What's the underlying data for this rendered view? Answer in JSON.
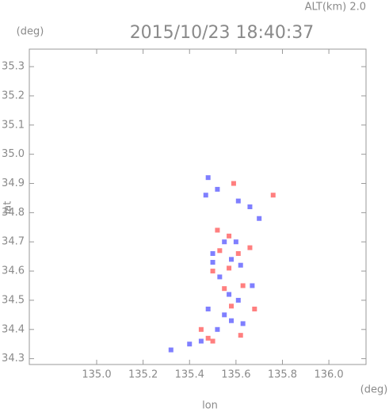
{
  "chart_data": {
    "type": "scatter",
    "title": "2015/10/23 18:40:37",
    "subtitle": "ALT(km) 2.0",
    "ylabel_unit": "(deg)",
    "xlabel_unit": "(deg)",
    "ylabel": "lat",
    "xlabel": "lon",
    "xlim": [
      134.71,
      136.16
    ],
    "ylim": [
      34.28,
      35.36
    ],
    "xticks": [
      {
        "value": 135,
        "label": "135.0"
      },
      135.2,
      135.4,
      135.6,
      135.8,
      {
        "value": 136,
        "label": "136.0"
      }
    ],
    "yticks": [
      34.3,
      34.4,
      34.5,
      34.6,
      34.7,
      34.8,
      34.9,
      {
        "value": 35,
        "label": "35.0"
      },
      35.1,
      35.2,
      35.3
    ],
    "series": [
      {
        "color": "#7f7fff",
        "x": [
          135.48,
          135.47,
          135.52,
          135.61,
          135.66,
          135.55,
          135.5,
          135.58,
          135.62,
          135.53,
          135.57,
          135.61,
          135.48,
          135.55,
          135.63,
          135.52,
          135.45,
          135.4,
          135.32,
          135.67,
          135.6,
          135.7,
          135.5,
          135.58
        ],
        "values": [
          34.92,
          34.86,
          34.88,
          34.84,
          34.82,
          34.7,
          34.66,
          34.64,
          34.62,
          34.58,
          34.52,
          34.5,
          34.47,
          34.45,
          34.42,
          34.4,
          34.36,
          34.35,
          34.33,
          34.55,
          34.7,
          34.78,
          34.63,
          34.43
        ]
      },
      {
        "color": "#ff7f7f",
        "x": [
          135.57,
          135.53,
          135.61,
          135.57,
          135.5,
          135.63,
          135.55,
          135.68,
          135.58,
          135.45,
          135.48,
          135.5,
          135.62,
          135.76,
          135.59,
          135.66,
          135.52
        ],
        "values": [
          34.72,
          34.67,
          34.66,
          34.61,
          34.6,
          34.55,
          34.54,
          34.47,
          34.48,
          34.4,
          34.37,
          34.36,
          34.38,
          34.86,
          34.9,
          34.68,
          34.74
        ]
      }
    ]
  }
}
